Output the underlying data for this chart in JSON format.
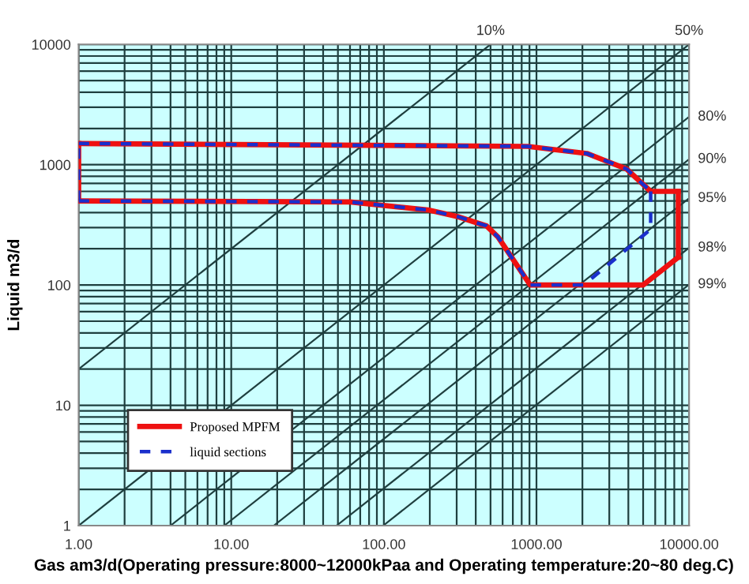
{
  "chart_data": {
    "type": "line",
    "xlabel": "Gas am3/d(Operating pressure:8000~12000kPaa and Operating temperature:20~80 deg.C)",
    "ylabel": "Liquid m3/d",
    "log": "xy",
    "xlim": [
      1,
      10000
    ],
    "ylim": [
      1,
      10000
    ],
    "xticks": [
      {
        "value": 1,
        "label": "1.00"
      },
      {
        "value": 10,
        "label": "10.00"
      },
      {
        "value": 100,
        "label": "100.00"
      },
      {
        "value": 1000,
        "label": "1000.00"
      },
      {
        "value": 10000,
        "label": "10000.00"
      }
    ],
    "yticks": [
      1,
      10,
      100,
      1000,
      10000
    ],
    "grid": true,
    "legend": "bottom left",
    "series": [
      {
        "color": "#1f3f3f",
        "x": [
          1,
          500
        ],
        "values": [
          20,
          10000
        ]
      },
      {
        "color": "#1f3f3f",
        "x": [
          1,
          10000
        ],
        "values": [
          1,
          10000
        ]
      },
      {
        "color": "#1f3f3f",
        "x": [
          4,
          10000
        ],
        "values": [
          1,
          2500
        ]
      },
      {
        "color": "#1f3f3f",
        "x": [
          9,
          10000
        ],
        "values": [
          1,
          1111
        ]
      },
      {
        "color": "#1f3f3f",
        "x": [
          19,
          10000
        ],
        "values": [
          1,
          526
        ]
      },
      {
        "color": "#1f3f3f",
        "x": [
          49,
          10000
        ],
        "values": [
          1,
          204
        ]
      },
      {
        "color": "#1f3f3f",
        "x": [
          99,
          10000
        ],
        "values": [
          1,
          101
        ]
      },
      {
        "name": "Proposed MPFM",
        "color": "#ee1111",
        "line_style": "solid",
        "x": [
          1,
          875,
          2140,
          3900,
          5600,
          8500
        ],
        "values": [
          1500,
          1420,
          1240,
          920,
          600,
          600
        ]
      },
      {
        "color": "#ee1111",
        "line_style": "solid",
        "x": [
          8500,
          8500
        ],
        "values": [
          600,
          170
        ]
      },
      {
        "color": "#ee1111",
        "line_style": "solid",
        "x": [
          1,
          60,
          195,
          305,
          470,
          560,
          910,
          5000,
          8500
        ],
        "values": [
          500,
          490,
          420,
          370,
          310,
          250,
          100,
          100,
          170
        ]
      },
      {
        "color": "#ee1111",
        "line_style": "solid",
        "x": [
          1,
          1
        ],
        "values": [
          500,
          1500
        ]
      },
      {
        "name": "liquid sections",
        "color": "#1a2fcc",
        "line_style": "dashed",
        "x": [
          1,
          875,
          2140,
          3900,
          5600
        ],
        "values": [
          1500,
          1420,
          1240,
          920,
          600
        ]
      },
      {
        "color": "#1a2fcc",
        "line_style": "dashed",
        "x": [
          5600,
          5600
        ],
        "values": [
          600,
          290
        ]
      },
      {
        "color": "#1a2fcc",
        "line_style": "dashed",
        "x": [
          1,
          60,
          195,
          305,
          470,
          560,
          910,
          2040,
          5600
        ],
        "values": [
          500,
          490,
          420,
          370,
          310,
          250,
          100,
          100,
          290
        ]
      },
      {
        "color": "#1a2fcc",
        "line_style": "dashed",
        "x": [
          1,
          1
        ],
        "values": [
          500,
          1500
        ]
      }
    ],
    "annotations": [
      "10%",
      "50%",
      "80%",
      "90%",
      "95%",
      "98%",
      "99%"
    ]
  }
}
